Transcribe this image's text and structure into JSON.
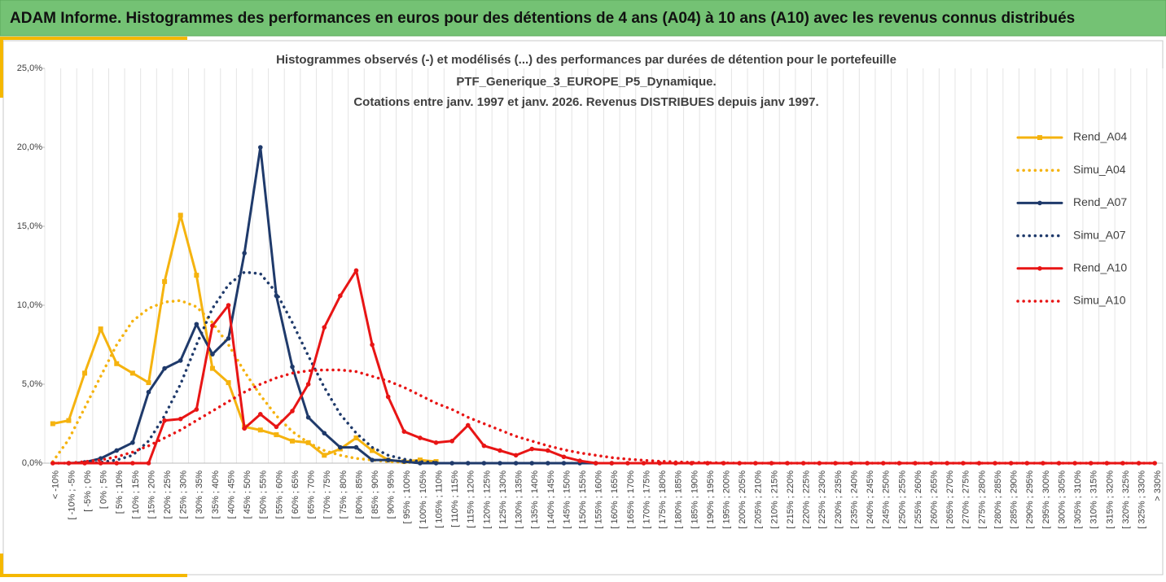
{
  "header": {
    "title": "ADAM Informe. Histogrammes des performances en euros pour des détentions de 4 ans (A04) à 10 ans (A10) avec les revenus connus distribués"
  },
  "chart_data": {
    "type": "line",
    "title": [
      "Histogrammes observés (-) et modélisés (...) des performances par durées de détention pour le portefeuille",
      "PTF_Generique_3_EUROPE_P5_Dynamique.",
      "Cotations entre janv. 1997 et janv. 2026. Revenus DISTRIBUES depuis janv 1997."
    ],
    "categories": [
      "< -10%",
      "[ -10% ; -5%",
      "[ -5% ; 0%",
      "[ 0% ; 5%",
      "[ 5% ; 10%",
      "[ 10% ; 15%",
      "[ 15% ; 20%",
      "[ 20% ; 25%",
      "[ 25% ; 30%",
      "[ 30% ; 35%",
      "[ 35% ; 40%",
      "[ 40% ; 45%",
      "[ 45% ; 50%",
      "[ 50% ; 55%",
      "[ 55% ; 60%",
      "[ 60% ; 65%",
      "[ 65% ; 70%",
      "[ 70% ; 75%",
      "[ 75% ; 80%",
      "[ 80% ; 85%",
      "[ 85% ; 90%",
      "[ 90% ; 95%",
      "[ 95% ; 100%",
      "[ 100% ; 105%",
      "[ 105% ; 110%",
      "[ 110% ; 115%",
      "[ 115% ; 120%",
      "[ 120% ; 125%",
      "[ 125% ; 130%",
      "[ 130% ; 135%",
      "[ 135% ; 140%",
      "[ 140% ; 145%",
      "[ 145% ; 150%",
      "[ 150% ; 155%",
      "[ 155% ; 160%",
      "[ 160% ; 165%",
      "[ 165% ; 170%",
      "[ 170% ; 175%",
      "[ 175% ; 180%",
      "[ 180% ; 185%",
      "[ 185% ; 190%",
      "[ 190% ; 195%",
      "[ 195% ; 200%",
      "[ 200% ; 205%",
      "[ 205% ; 210%",
      "[ 210% ; 215%",
      "[ 215% ; 220%",
      "[ 220% ; 225%",
      "[ 225% ; 230%",
      "[ 230% ; 235%",
      "[ 235% ; 240%",
      "[ 240% ; 245%",
      "[ 245% ; 250%",
      "[ 250% ; 255%",
      "[ 255% ; 260%",
      "[ 260% ; 265%",
      "[ 265% ; 270%",
      "[ 270% ; 275%",
      "[ 275% ; 280%",
      "[ 280% ; 285%",
      "[ 285% ; 290%",
      "[ 290% ; 295%",
      "[ 295% ; 300%",
      "[ 300% ; 305%",
      "[ 305% ; 310%",
      "[ 310% ; 315%",
      "[ 315% ; 320%",
      "[ 320% ; 325%",
      "[ 325% ; 330%",
      "> 330%"
    ],
    "series": [
      {
        "name": "Rend_A04",
        "color": "#f5b30f",
        "style": "solid",
        "marker": "square",
        "values": [
          2.5,
          2.7,
          5.7,
          8.5,
          6.3,
          5.7,
          5.1,
          11.5,
          15.7,
          11.9,
          6.0,
          5.1,
          2.3,
          2.1,
          1.8,
          1.4,
          1.3,
          0.5,
          0.9,
          1.6,
          0.8,
          0.2,
          0.1,
          0.2,
          0.1,
          null,
          null,
          null,
          null,
          null,
          null,
          null,
          null,
          null,
          null,
          null,
          null,
          null,
          null,
          null,
          null,
          null,
          null,
          null,
          null,
          null,
          null,
          null,
          null,
          null,
          null,
          null,
          null,
          null,
          null,
          null,
          null,
          null,
          null,
          null,
          null,
          null,
          null,
          null,
          null,
          null,
          null,
          null,
          null,
          null
        ]
      },
      {
        "name": "Simu_A04",
        "color": "#f5b30f",
        "style": "dotted",
        "values": [
          0.1,
          1.5,
          3.5,
          5.5,
          7.5,
          9.0,
          9.8,
          10.2,
          10.3,
          9.9,
          8.9,
          7.5,
          5.8,
          4.3,
          3.0,
          2.0,
          1.3,
          0.8,
          0.5,
          0.3,
          0.2,
          0.1,
          0.05,
          0.03,
          0.02,
          null,
          null,
          null,
          null,
          null,
          null,
          null,
          null,
          null,
          null,
          null,
          null,
          null,
          null,
          null,
          null,
          null,
          null,
          null,
          null,
          null,
          null,
          null,
          null,
          null,
          null,
          null,
          null,
          null,
          null,
          null,
          null,
          null,
          null,
          null,
          null,
          null,
          null,
          null,
          null,
          null,
          null,
          null,
          null,
          null
        ]
      },
      {
        "name": "Rend_A07",
        "color": "#1f3a6b",
        "style": "solid",
        "marker": "circle",
        "values": [
          null,
          0,
          0.05,
          0.3,
          0.8,
          1.3,
          4.5,
          6.0,
          6.5,
          8.8,
          6.9,
          7.9,
          13.3,
          20.0,
          10.6,
          6.1,
          2.9,
          1.9,
          1.0,
          1.0,
          0.2,
          0.2,
          0.1,
          0,
          0,
          0,
          0,
          0,
          0,
          0,
          0,
          0,
          0,
          0,
          0,
          0,
          null,
          null,
          null,
          null,
          null,
          null,
          null,
          null,
          null,
          null,
          null,
          null,
          null,
          null,
          null,
          null,
          null,
          null,
          null,
          null,
          null,
          null,
          null,
          null,
          null,
          null,
          null,
          null,
          null,
          null,
          null,
          null,
          null,
          null
        ]
      },
      {
        "name": "Simu_A07",
        "color": "#1f3a6b",
        "style": "dotted",
        "values": [
          null,
          null,
          0.01,
          0.05,
          0.2,
          0.5,
          1.4,
          3.0,
          5.0,
          7.5,
          9.8,
          11.3,
          12.1,
          12.0,
          10.8,
          8.9,
          6.8,
          4.8,
          3.1,
          1.9,
          1.0,
          0.5,
          0.25,
          0.1,
          0.05,
          null,
          null,
          null,
          null,
          null,
          null,
          null,
          null,
          null,
          null,
          null,
          null,
          null,
          null,
          null,
          null,
          null,
          null,
          null,
          null,
          null,
          null,
          null,
          null,
          null,
          null,
          null,
          null,
          null,
          null,
          null,
          null,
          null,
          null,
          null,
          null,
          null,
          null,
          null,
          null,
          null,
          null,
          null,
          null,
          null
        ]
      },
      {
        "name": "Rend_A10",
        "color": "#e81515",
        "style": "solid",
        "marker": "circle",
        "values": [
          0,
          0,
          0,
          0,
          0,
          0,
          0,
          2.7,
          2.8,
          3.4,
          8.7,
          10.0,
          2.2,
          3.1,
          2.3,
          3.3,
          5.0,
          8.6,
          10.6,
          12.2,
          7.5,
          4.2,
          2.0,
          1.6,
          1.3,
          1.4,
          2.4,
          1.1,
          0.8,
          0.5,
          0.9,
          0.8,
          0.4,
          0.15,
          0,
          0,
          0,
          0,
          0,
          0,
          0,
          0,
          0,
          0,
          0,
          0,
          0,
          0,
          0,
          0,
          0,
          0,
          0,
          0,
          0,
          0,
          0,
          0,
          0,
          0,
          0,
          0,
          0,
          0,
          0,
          0,
          0,
          0,
          0,
          0
        ]
      },
      {
        "name": "Simu_A10",
        "color": "#e81515",
        "style": "dotted",
        "values": [
          0,
          0,
          0.1,
          0.2,
          0.4,
          0.7,
          1.1,
          1.6,
          2.1,
          2.7,
          3.3,
          3.9,
          4.5,
          5.0,
          5.4,
          5.7,
          5.85,
          5.9,
          5.9,
          5.8,
          5.5,
          5.2,
          4.8,
          4.3,
          3.8,
          3.4,
          2.9,
          2.5,
          2.1,
          1.7,
          1.4,
          1.1,
          0.85,
          0.65,
          0.5,
          0.35,
          0.25,
          0.18,
          0.12,
          0.08,
          0.05,
          0.03,
          0.02,
          0,
          0,
          0,
          0,
          0,
          0,
          0,
          0,
          0,
          0,
          0,
          0,
          0,
          0,
          0,
          0,
          0,
          0,
          0,
          0,
          0,
          0,
          0,
          0,
          0,
          0,
          0
        ]
      }
    ],
    "ylim": [
      0,
      25
    ],
    "yticks": [
      {
        "value": 0,
        "label": "0,0%"
      },
      {
        "value": 5,
        "label": "5,0%"
      },
      {
        "value": 10,
        "label": "10,0%"
      },
      {
        "value": 15,
        "label": "15,0%"
      },
      {
        "value": 20,
        "label": "20,0%"
      },
      {
        "value": 25,
        "label": "25,0%"
      }
    ],
    "grid": "x",
    "legend": "right"
  }
}
